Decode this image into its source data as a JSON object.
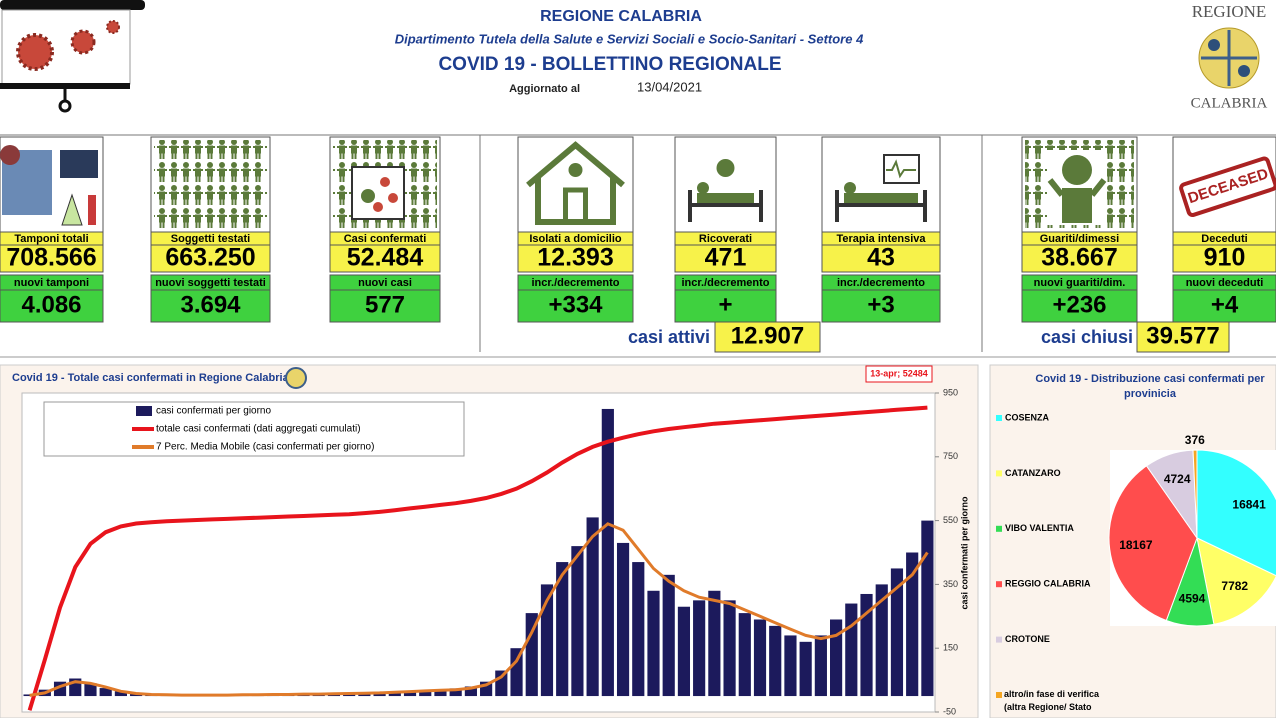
{
  "header": {
    "region": "REGIONE CALABRIA",
    "department": "Dipartimento Tutela della Salute e Servizi Sociali e Socio-Sanitari - Settore 4",
    "title": "COVID 19 - BOLLETTINO REGIONALE",
    "updated_label": "Aggiornato al",
    "updated_date": "13/04/2021",
    "logo_top": "REGIONE",
    "logo_bottom": "CALABRIA"
  },
  "kpis": [
    {
      "label": "Tamponi totali",
      "value": "708.566",
      "sub_label": "nuovi tamponi",
      "sub_value": "4.086"
    },
    {
      "label": "Soggetti testati",
      "value": "663.250",
      "sub_label": "nuovi soggetti testati",
      "sub_value": "3.694"
    },
    {
      "label": "Casi confermati",
      "value": "52.484",
      "sub_label": "nuovi casi",
      "sub_value": "577"
    },
    {
      "label": "Isolati a domicilio",
      "value": "12.393",
      "sub_label": "incr./decremento",
      "sub_value": "+334"
    },
    {
      "label": "Ricoverati",
      "value": "471",
      "sub_label": "incr./decremento",
      "sub_value": "+"
    },
    {
      "label": "Terapia intensiva",
      "value": "43",
      "sub_label": "incr./decremento",
      "sub_value": "+3"
    },
    {
      "label": "Guariti/dimessi",
      "value": "38.667",
      "sub_label": "nuovi guariti/dim.",
      "sub_value": "+236"
    },
    {
      "label": "Deceduti",
      "value": "910",
      "sub_label": "nuovi deceduti",
      "sub_value": "+4",
      "icon_text": "DECEASED"
    }
  ],
  "summaries": [
    {
      "label": "casi attivi",
      "value": "12.907"
    },
    {
      "label": "casi chiusi",
      "value": "39.577"
    }
  ],
  "chart_data": [
    {
      "type": "combo",
      "title": "Covid 19 - Totale casi confermati in Regione Calabria",
      "annotation": "13-apr; 52484",
      "y2label": "casi confermati  per giorno",
      "ylim": [
        0,
        55000
      ],
      "y2lim": [
        -50,
        950
      ],
      "y2ticks": [
        950,
        750,
        550,
        350,
        150,
        -50
      ],
      "series": [
        {
          "name": "casi confermati per giorno",
          "kind": "bar",
          "axis": "y2",
          "color": "#1c1a5c",
          "values": [
            5,
            20,
            45,
            55,
            40,
            25,
            15,
            10,
            6,
            4,
            3,
            3,
            4,
            3,
            5,
            4,
            6,
            5,
            7,
            6,
            8,
            9,
            10,
            12,
            14,
            16,
            18,
            20,
            24,
            30,
            45,
            80,
            150,
            260,
            350,
            420,
            470,
            560,
            900,
            480,
            420,
            330,
            380,
            280,
            300,
            330,
            300,
            260,
            240,
            220,
            190,
            170,
            190,
            240,
            290,
            320,
            350,
            400,
            450,
            550
          ]
        },
        {
          "name": "totale casi confermati (dati aggregati cumulati)",
          "kind": "line",
          "color": "#e8141c",
          "values": [
            300,
            9000,
            18000,
            25000,
            29000,
            31000,
            32000,
            32500,
            32700,
            32900,
            33000,
            33100,
            33200,
            33300,
            33400,
            33500,
            33600,
            33700,
            33800,
            33900,
            34000,
            34100,
            34300,
            34500,
            34800,
            35100,
            35400,
            35700,
            36000,
            36400,
            36900,
            37600,
            38500,
            39800,
            41300,
            43000,
            44500,
            45700,
            46600,
            47300,
            47900,
            48400,
            48800,
            49100,
            49400,
            49700,
            49900,
            50100,
            50300,
            50500,
            50700,
            50900,
            51100,
            51300,
            51500,
            51700,
            51900,
            52100,
            52300,
            52484
          ]
        },
        {
          "name": "7 Perc. Media Mobile (casi confermati per giorno)",
          "kind": "line",
          "axis": "y2",
          "color": "#e07b2a",
          "values": [
            2,
            10,
            30,
            45,
            40,
            28,
            15,
            8,
            5,
            4,
            3,
            3,
            3,
            3,
            4,
            4,
            5,
            5,
            6,
            6,
            7,
            8,
            9,
            10,
            12,
            14,
            16,
            18,
            20,
            25,
            35,
            60,
            110,
            200,
            300,
            380,
            440,
            500,
            540,
            520,
            460,
            400,
            360,
            330,
            310,
            300,
            290,
            270,
            250,
            230,
            210,
            190,
            180,
            190,
            220,
            260,
            300,
            340,
            380,
            450
          ]
        }
      ]
    },
    {
      "type": "pie",
      "title": "Covid 19 - Distribuzione casi confermati per provinicia",
      "categories": [
        "COSENZA",
        "CATANZARO",
        "VIBO VALENTIA",
        "REGGIO CALABRIA",
        "CROTONE",
        "altro/in fase di verifica (altra Regione/ Stato"
      ],
      "values": [
        16841,
        7782,
        4594,
        18167,
        4724,
        376
      ],
      "colors": [
        "#33ffff",
        "#ffff66",
        "#33dd55",
        "#ff4d4d",
        "#d8cce0",
        "#f5a623"
      ]
    }
  ]
}
